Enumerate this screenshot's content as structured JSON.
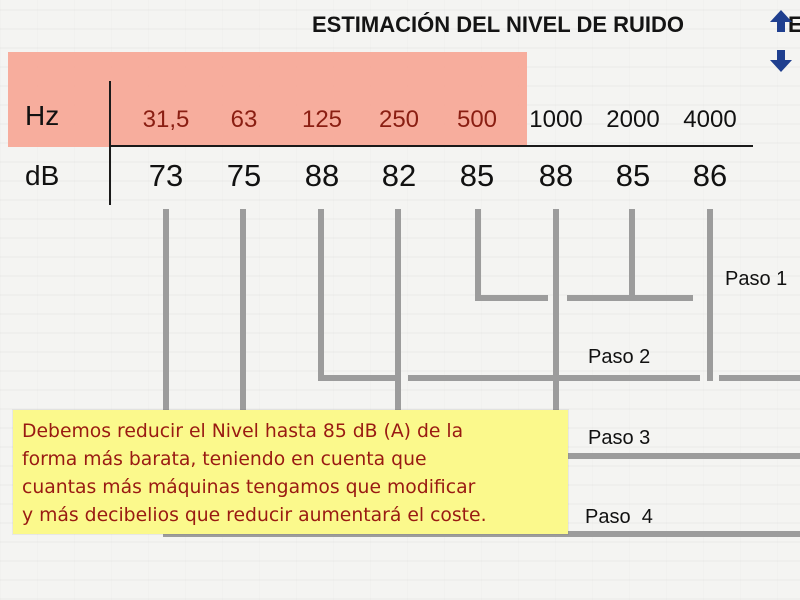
{
  "title": "ESTIMACIÓN DEL NIVEL DE RUIDO",
  "title_overflow": "E",
  "nav": {
    "up_icon": "arrow-up-icon",
    "down_icon": "arrow-down-icon",
    "color": "#1f3f8f"
  },
  "highlight_color": "#f7a594",
  "table": {
    "hz_label": "Hz",
    "db_label": "dB",
    "columns": [
      {
        "hz": "31,5",
        "db": "73"
      },
      {
        "hz": "63",
        "db": "75"
      },
      {
        "hz": "125",
        "db": "88"
      },
      {
        "hz": "250",
        "db": "82"
      },
      {
        "hz": "500",
        "db": "85"
      },
      {
        "hz": "1000",
        "db": "88"
      },
      {
        "hz": "2000",
        "db": "85"
      },
      {
        "hz": "4000",
        "db": "86"
      }
    ]
  },
  "steps": {
    "paso1": "Paso 1",
    "paso2": "Paso 2",
    "paso3": "Paso 3",
    "paso4": "Paso  4"
  },
  "note": {
    "line1": "Debemos reducir el Nivel hasta 85 dB (A) de la",
    "line2": "forma más barata, teniendo en cuenta que",
    "line3": "cuantas más máquinas tengamos que modificar",
    "line4": "y más decibelios que reducir aumentará el coste."
  }
}
